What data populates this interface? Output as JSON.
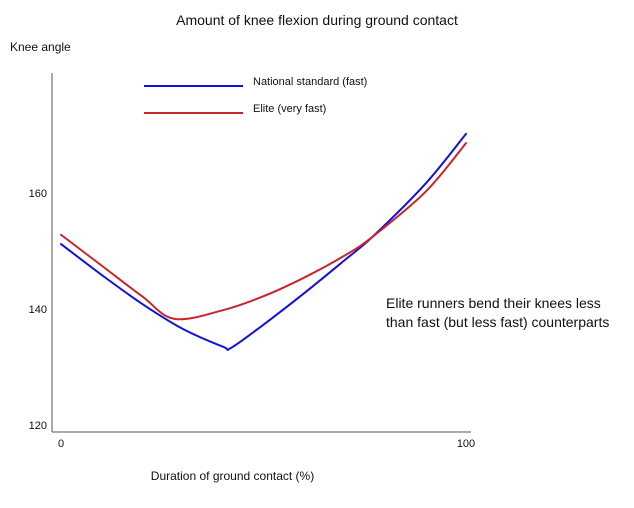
{
  "chart_data": {
    "type": "line",
    "title": "Amount of knee flexion during ground contact",
    "xlabel": "Duration of ground contact (%)",
    "ylabel": "Knee angle",
    "xlim": [
      0,
      100
    ],
    "ylim": [
      120,
      180
    ],
    "x_ticks": [
      0,
      100
    ],
    "y_ticks": [
      120,
      140,
      160
    ],
    "grid": false,
    "legend_position": "top-left",
    "series": [
      {
        "name": "National standard (fast)",
        "color": "#1111e0",
        "x": [
          0,
          10,
          20,
          30,
          40,
          42,
          50,
          60,
          70,
          77,
          90,
          100
        ],
        "y": [
          151.2,
          145.9,
          140.9,
          136.6,
          133.5,
          133.3,
          137.3,
          142.7,
          148.4,
          152.5,
          161.6,
          170.2
        ]
      },
      {
        "name": "Elite (very fast)",
        "color": "#c8262b",
        "x": [
          0,
          10,
          20,
          28,
          40,
          50,
          60,
          70,
          77,
          90,
          100
        ],
        "y": [
          152.8,
          147.5,
          142.2,
          138.3,
          139.8,
          142.2,
          145.4,
          149.2,
          152.5,
          160.2,
          168.6
        ]
      }
    ],
    "annotations": [
      "Elite runners bend their knees less than fast (but less fast) counterparts"
    ]
  }
}
